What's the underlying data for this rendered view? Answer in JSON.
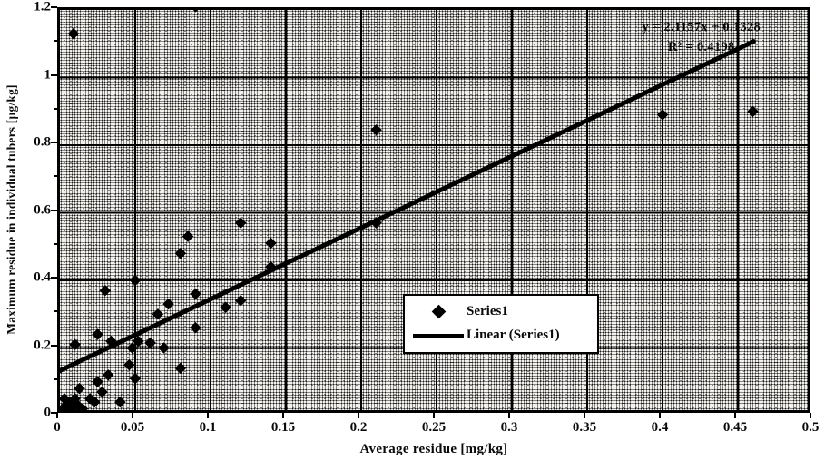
{
  "colors": {
    "foreground": "#0a0a0a",
    "plot_fill": "#c9c9c6",
    "legend_background": "#ffffff"
  },
  "chart_data": {
    "type": "scatter",
    "title": "",
    "xlabel": "Average residue [mg/kg]",
    "ylabel": "Maximum residue in individual tubers [µg/kg]",
    "xlim": [
      0,
      0.5
    ],
    "ylim": [
      0,
      1.2
    ],
    "grid": true,
    "x_tick_values": [
      0,
      0.05,
      0.1,
      0.15,
      0.2,
      0.25,
      0.3,
      0.35,
      0.4,
      0.45,
      0.5
    ],
    "x_tick_labels": [
      "0",
      "0.05",
      "0.1",
      "0.15",
      "0.2",
      "0.25",
      "0.3",
      "0.35",
      "0.4",
      "0.45",
      "0.5"
    ],
    "y_tick_values": [
      0,
      0.2,
      0.4,
      0.6,
      0.8,
      1,
      1.2
    ],
    "y_tick_labels": [
      "0",
      "0.2",
      "0.4",
      "0.6",
      "0.8",
      "1",
      "1.2"
    ],
    "y_minor_tick_values": [
      0.1,
      0.3,
      0.5,
      0.7,
      0.9,
      1.1
    ],
    "annotation": {
      "line1": "y = 2.1157x + 0.1328",
      "line2": "R² = 0.4198"
    },
    "legend": {
      "position": "inside-bottom-center",
      "items": [
        {
          "label": "Series1",
          "marker": "diamond"
        },
        {
          "label": "Linear (Series1)",
          "marker": "line"
        }
      ]
    },
    "series": [
      {
        "name": "Series1",
        "type": "scatter",
        "marker": "diamond",
        "points": [
          [
            0.002,
            0.02
          ],
          [
            0.003,
            0.05
          ],
          [
            0.004,
            0.03
          ],
          [
            0.006,
            0.01
          ],
          [
            0.007,
            0.04
          ],
          [
            0.008,
            0.02
          ],
          [
            0.01,
            0.05
          ],
          [
            0.012,
            0.03
          ],
          [
            0.015,
            0.02
          ],
          [
            0.013,
            0.08
          ],
          [
            0.02,
            0.05
          ],
          [
            0.023,
            0.04
          ],
          [
            0.025,
            0.1
          ],
          [
            0.028,
            0.07
          ],
          [
            0.032,
            0.12
          ],
          [
            0.04,
            0.04
          ],
          [
            0.046,
            0.15
          ],
          [
            0.05,
            0.11
          ],
          [
            0.01,
            0.21
          ],
          [
            0.025,
            0.24
          ],
          [
            0.034,
            0.22
          ],
          [
            0.048,
            0.2
          ],
          [
            0.052,
            0.22
          ],
          [
            0.06,
            0.215
          ],
          [
            0.069,
            0.2
          ],
          [
            0.08,
            0.14
          ],
          [
            0.03,
            0.37
          ],
          [
            0.05,
            0.4
          ],
          [
            0.065,
            0.3
          ],
          [
            0.072,
            0.33
          ],
          [
            0.09,
            0.36
          ],
          [
            0.09,
            0.26
          ],
          [
            0.11,
            0.32
          ],
          [
            0.12,
            0.34
          ],
          [
            0.08,
            0.48
          ],
          [
            0.085,
            0.53
          ],
          [
            0.12,
            0.57
          ],
          [
            0.14,
            0.51
          ],
          [
            0.14,
            0.44
          ],
          [
            0.21,
            0.57
          ],
          [
            0.21,
            0.845
          ],
          [
            0.4,
            0.89
          ],
          [
            0.46,
            0.9
          ],
          [
            0.009,
            1.13
          ],
          [
            0.09,
            1.21
          ]
        ]
      },
      {
        "name": "Linear (Series1)",
        "type": "line",
        "slope": 2.1157,
        "intercept": 0.1328,
        "r_squared": 0.4198,
        "x_range": [
          0,
          0.4605
        ]
      }
    ]
  }
}
